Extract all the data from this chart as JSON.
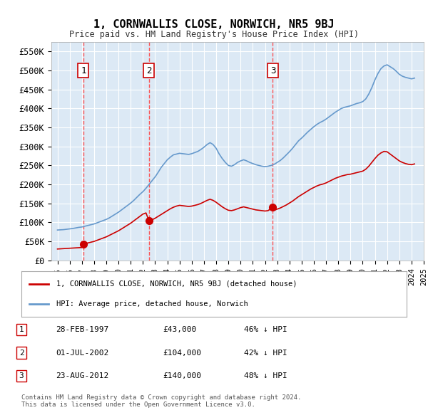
{
  "title": "1, CORNWALLIS CLOSE, NORWICH, NR5 9BJ",
  "subtitle": "Price paid vs. HM Land Registry's House Price Index (HPI)",
  "background_color": "#ffffff",
  "plot_bg_color": "#dce9f5",
  "grid_color": "#ffffff",
  "legend_label_red": "1, CORNWALLIS CLOSE, NORWICH, NR5 9BJ (detached house)",
  "legend_label_blue": "HPI: Average price, detached house, Norwich",
  "footer": "Contains HM Land Registry data © Crown copyright and database right 2024.\nThis data is licensed under the Open Government Licence v3.0.",
  "transactions": [
    {
      "num": 1,
      "date": "28-FEB-1997",
      "price": 43000,
      "year": 1997.12,
      "hpi_pct": "46% ↓ HPI"
    },
    {
      "num": 2,
      "date": "01-JUL-2002",
      "price": 104000,
      "year": 2002.5,
      "hpi_pct": "42% ↓ HPI"
    },
    {
      "num": 3,
      "date": "23-AUG-2012",
      "price": 140000,
      "year": 2012.64,
      "hpi_pct": "48% ↓ HPI"
    }
  ],
  "hpi_line": {
    "years": [
      1995.0,
      1995.25,
      1995.5,
      1995.75,
      1996.0,
      1996.25,
      1996.5,
      1996.75,
      1997.0,
      1997.25,
      1997.5,
      1997.75,
      1998.0,
      1998.25,
      1998.5,
      1998.75,
      1999.0,
      1999.25,
      1999.5,
      1999.75,
      2000.0,
      2000.25,
      2000.5,
      2000.75,
      2001.0,
      2001.25,
      2001.5,
      2001.75,
      2002.0,
      2002.25,
      2002.5,
      2002.75,
      2003.0,
      2003.25,
      2003.5,
      2003.75,
      2004.0,
      2004.25,
      2004.5,
      2004.75,
      2005.0,
      2005.25,
      2005.5,
      2005.75,
      2006.0,
      2006.25,
      2006.5,
      2006.75,
      2007.0,
      2007.25,
      2007.5,
      2007.75,
      2008.0,
      2008.25,
      2008.5,
      2008.75,
      2009.0,
      2009.25,
      2009.5,
      2009.75,
      2010.0,
      2010.25,
      2010.5,
      2010.75,
      2011.0,
      2011.25,
      2011.5,
      2011.75,
      2012.0,
      2012.25,
      2012.5,
      2012.75,
      2013.0,
      2013.25,
      2013.5,
      2013.75,
      2014.0,
      2014.25,
      2014.5,
      2014.75,
      2015.0,
      2015.25,
      2015.5,
      2015.75,
      2016.0,
      2016.25,
      2016.5,
      2016.75,
      2017.0,
      2017.25,
      2017.5,
      2017.75,
      2018.0,
      2018.25,
      2018.5,
      2018.75,
      2019.0,
      2019.25,
      2019.5,
      2019.75,
      2020.0,
      2020.25,
      2020.5,
      2020.75,
      2021.0,
      2021.25,
      2021.5,
      2021.75,
      2022.0,
      2022.25,
      2022.5,
      2022.75,
      2023.0,
      2023.25,
      2023.5,
      2023.75,
      2024.0,
      2024.25
    ],
    "values": [
      80000,
      80500,
      81000,
      82000,
      83000,
      84000,
      85500,
      87000,
      88000,
      90000,
      92000,
      94000,
      96000,
      99000,
      102000,
      105000,
      108000,
      112000,
      117000,
      122000,
      127000,
      133000,
      139000,
      145000,
      151000,
      158000,
      166000,
      174000,
      181000,
      190000,
      200000,
      210000,
      220000,
      232000,
      245000,
      255000,
      265000,
      272000,
      278000,
      280000,
      282000,
      281000,
      280000,
      279000,
      281000,
      284000,
      287000,
      292000,
      298000,
      305000,
      310000,
      305000,
      295000,
      280000,
      268000,
      258000,
      250000,
      248000,
      252000,
      258000,
      262000,
      265000,
      262000,
      258000,
      255000,
      252000,
      250000,
      248000,
      247000,
      248000,
      250000,
      253000,
      258000,
      263000,
      270000,
      278000,
      286000,
      295000,
      305000,
      315000,
      322000,
      330000,
      338000,
      345000,
      352000,
      358000,
      363000,
      367000,
      372000,
      378000,
      384000,
      390000,
      395000,
      400000,
      403000,
      405000,
      407000,
      410000,
      413000,
      415000,
      418000,
      425000,
      438000,
      455000,
      475000,
      492000,
      505000,
      512000,
      515000,
      510000,
      505000,
      498000,
      490000,
      485000,
      482000,
      480000,
      478000,
      480000
    ]
  },
  "red_line": {
    "years": [
      1995.0,
      1995.25,
      1995.5,
      1995.75,
      1996.0,
      1996.25,
      1996.5,
      1996.75,
      1997.0,
      1997.12,
      1997.25,
      1997.5,
      1997.75,
      1998.0,
      1998.25,
      1998.5,
      1998.75,
      1999.0,
      1999.25,
      1999.5,
      1999.75,
      2000.0,
      2000.25,
      2000.5,
      2000.75,
      2001.0,
      2001.25,
      2001.5,
      2001.75,
      2002.0,
      2002.25,
      2002.5,
      2002.75,
      2003.0,
      2003.25,
      2003.5,
      2003.75,
      2004.0,
      2004.25,
      2004.5,
      2004.75,
      2005.0,
      2005.25,
      2005.5,
      2005.75,
      2006.0,
      2006.25,
      2006.5,
      2006.75,
      2007.0,
      2007.25,
      2007.5,
      2007.75,
      2008.0,
      2008.25,
      2008.5,
      2008.75,
      2009.0,
      2009.25,
      2009.5,
      2009.75,
      2010.0,
      2010.25,
      2010.5,
      2010.75,
      2011.0,
      2011.25,
      2011.5,
      2011.75,
      2012.0,
      2012.25,
      2012.64,
      2012.75,
      2013.0,
      2013.25,
      2013.5,
      2013.75,
      2014.0,
      2014.25,
      2014.5,
      2014.75,
      2015.0,
      2015.25,
      2015.5,
      2015.75,
      2016.0,
      2016.25,
      2016.5,
      2016.75,
      2017.0,
      2017.25,
      2017.5,
      2017.75,
      2018.0,
      2018.25,
      2018.5,
      2018.75,
      2019.0,
      2019.25,
      2019.5,
      2019.75,
      2020.0,
      2020.25,
      2020.5,
      2020.75,
      2021.0,
      2021.25,
      2021.5,
      2021.75,
      2022.0,
      2022.25,
      2022.5,
      2022.75,
      2023.0,
      2023.25,
      2023.5,
      2023.75,
      2024.0,
      2024.25
    ],
    "values": [
      30000,
      30500,
      31000,
      31500,
      32000,
      32500,
      33000,
      33500,
      34000,
      43000,
      44000,
      46000,
      48000,
      50000,
      53000,
      56000,
      59000,
      62000,
      66000,
      70000,
      74000,
      78000,
      83000,
      88000,
      93000,
      98000,
      104000,
      110000,
      116000,
      122000,
      125000,
      104000,
      107000,
      111000,
      116000,
      121000,
      126000,
      131000,
      136000,
      140000,
      143000,
      145000,
      144000,
      143000,
      142000,
      143000,
      145000,
      147000,
      150000,
      154000,
      158000,
      161000,
      158000,
      153000,
      147000,
      141000,
      136000,
      132000,
      131000,
      133000,
      136000,
      139000,
      141000,
      139000,
      137000,
      135000,
      133000,
      132000,
      131000,
      130000,
      131000,
      140000,
      132000,
      135000,
      138000,
      142000,
      146000,
      151000,
      156000,
      162000,
      168000,
      173000,
      178000,
      183000,
      188000,
      192000,
      196000,
      199000,
      201000,
      204000,
      208000,
      212000,
      216000,
      219000,
      222000,
      224000,
      226000,
      227000,
      229000,
      231000,
      233000,
      235000,
      240000,
      248000,
      258000,
      268000,
      277000,
      283000,
      287000,
      286000,
      280000,
      274000,
      268000,
      262000,
      258000,
      255000,
      253000,
      252000,
      254000
    ]
  },
  "ylim": [
    0,
    575000
  ],
  "xlim": [
    1994.5,
    2025.0
  ],
  "yticks": [
    0,
    50000,
    100000,
    150000,
    200000,
    250000,
    300000,
    350000,
    400000,
    450000,
    500000,
    550000
  ],
  "ytick_labels": [
    "£0",
    "£50K",
    "£100K",
    "£150K",
    "£200K",
    "£250K",
    "£300K",
    "£350K",
    "£400K",
    "£450K",
    "£500K",
    "£550K"
  ],
  "xtick_years": [
    1995,
    1996,
    1997,
    1998,
    1999,
    2000,
    2001,
    2002,
    2003,
    2004,
    2005,
    2006,
    2007,
    2008,
    2009,
    2010,
    2011,
    2012,
    2013,
    2014,
    2015,
    2016,
    2017,
    2018,
    2019,
    2020,
    2021,
    2022,
    2023,
    2024,
    2025
  ],
  "red_color": "#cc0000",
  "blue_color": "#6699cc",
  "dot_color": "#cc0000",
  "vline_color": "#ff4444",
  "box_color": "#cc0000"
}
